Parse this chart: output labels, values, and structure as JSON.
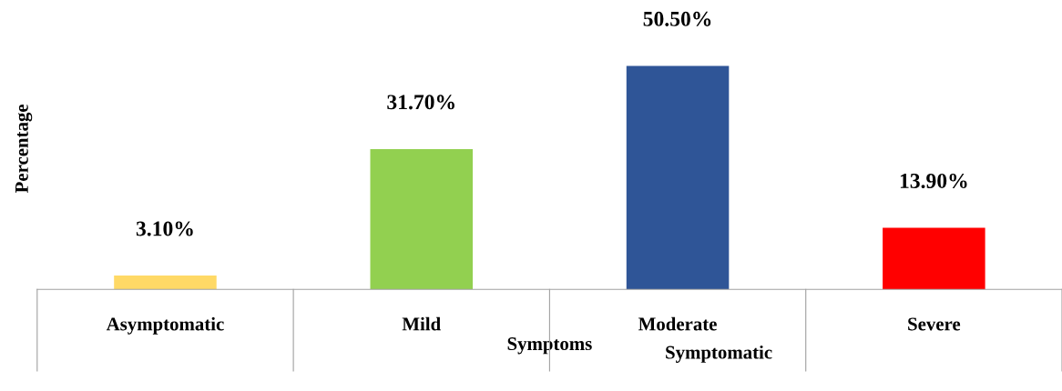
{
  "chart_data": {
    "type": "bar",
    "xlabel": "Symptoms",
    "ylabel": "Percentage",
    "categories": [
      "Asymptomatic",
      "Mild",
      "Moderate",
      "Severe"
    ],
    "values": [
      3.1,
      31.7,
      50.5,
      13.9
    ],
    "colors": [
      "#ffd966",
      "#92d050",
      "#2f5597",
      "#ff0000"
    ],
    "value_labels": [
      "3.10%",
      "31.70%",
      "50.50%",
      "13.90%"
    ],
    "annotations": [
      "Symptomatic"
    ],
    "grid": false,
    "legend": false
  }
}
